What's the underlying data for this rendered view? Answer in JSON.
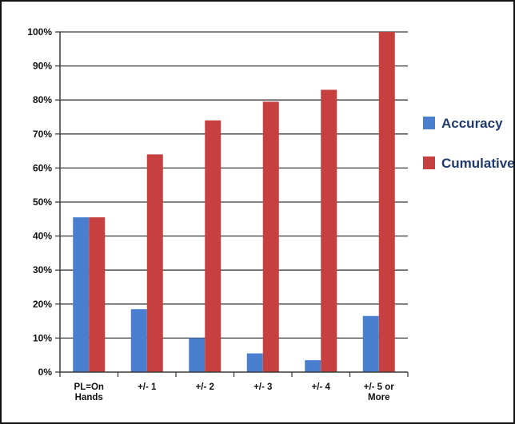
{
  "chart_data": {
    "type": "bar",
    "title": "",
    "xlabel": "",
    "ylabel": "",
    "categories": [
      [
        "PL=On",
        "Hands"
      ],
      [
        "+/- 1"
      ],
      [
        "+/- 2"
      ],
      [
        "+/- 3"
      ],
      [
        "+/- 4"
      ],
      [
        "+/- 5 or",
        "More"
      ]
    ],
    "series": [
      {
        "name": "Accuracy",
        "values": [
          45.5,
          18.5,
          10,
          5.5,
          3.5,
          16.5
        ],
        "color": "#4a7fd0"
      },
      {
        "name": "Cumulative",
        "values": [
          45.5,
          64,
          74,
          79.5,
          83,
          100
        ],
        "color": "#c74040"
      }
    ],
    "ylim": [
      0,
      100
    ],
    "yticks": [
      0,
      10,
      20,
      30,
      40,
      50,
      60,
      70,
      80,
      90,
      100
    ],
    "ytick_format": "percent",
    "grid": true,
    "legend_position": "right"
  }
}
